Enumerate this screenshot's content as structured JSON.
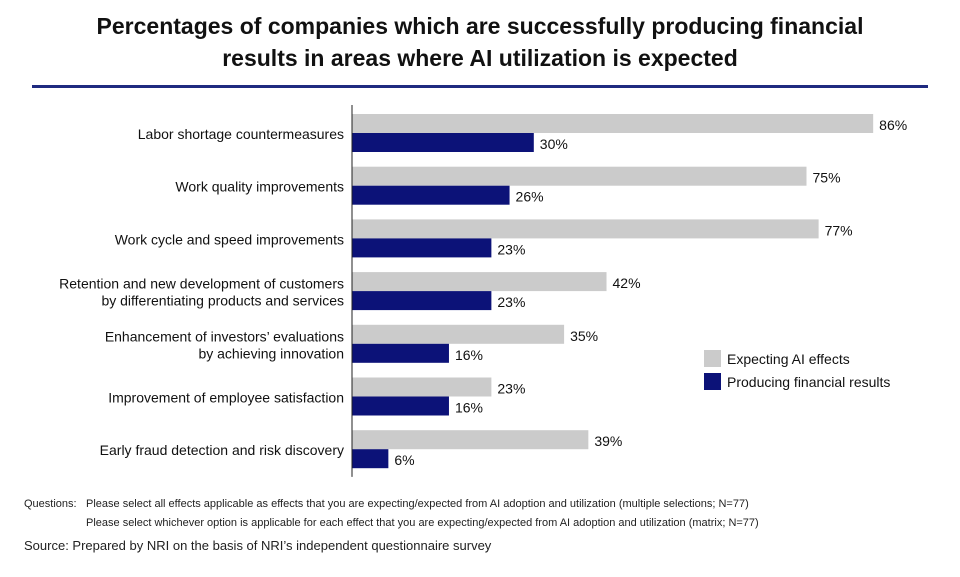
{
  "header": {
    "title_line1": "Percentages of companies which are successfully producing financial",
    "title_line2": "results in areas where AI utilization is expected"
  },
  "chart_data": {
    "type": "bar",
    "orientation": "horizontal",
    "title": "Percentages of companies which are successfully producing financial results in areas where AI utilization is expected",
    "xlabel": "",
    "ylabel": "",
    "xlim": [
      0,
      100
    ],
    "grid": false,
    "value_suffix": "%",
    "legend_position": "right",
    "categories": [
      [
        "Labor shortage countermeasures"
      ],
      [
        "Work quality improvements"
      ],
      [
        "Work cycle and speed improvements"
      ],
      [
        "Retention and new development of customers",
        "by differentiating products and services"
      ],
      [
        "Enhancement of investors’ evaluations",
        "by achieving innovation"
      ],
      [
        "Improvement of employee satisfaction"
      ],
      [
        "Early fraud detection and risk discovery"
      ]
    ],
    "series": [
      {
        "name": "Expecting AI effects",
        "color": "#cbcbcb",
        "values": [
          86,
          75,
          77,
          42,
          35,
          23,
          39
        ]
      },
      {
        "name": "Producing financial results",
        "color": "#0c1278",
        "values": [
          30,
          26,
          23,
          23,
          16,
          16,
          6
        ]
      }
    ]
  },
  "notes": {
    "questions_label": "Questions:",
    "question_1": "Please select all effects applicable as effects that you are expecting/expected from AI adoption and utilization (multiple selections; N=77)",
    "question_2": "Please select whichever option is applicable for each effect that you are expecting/expected from AI adoption and utilization (matrix; N=77)",
    "source": "Source: Prepared by NRI on the basis of NRI’s independent questionnaire survey"
  }
}
